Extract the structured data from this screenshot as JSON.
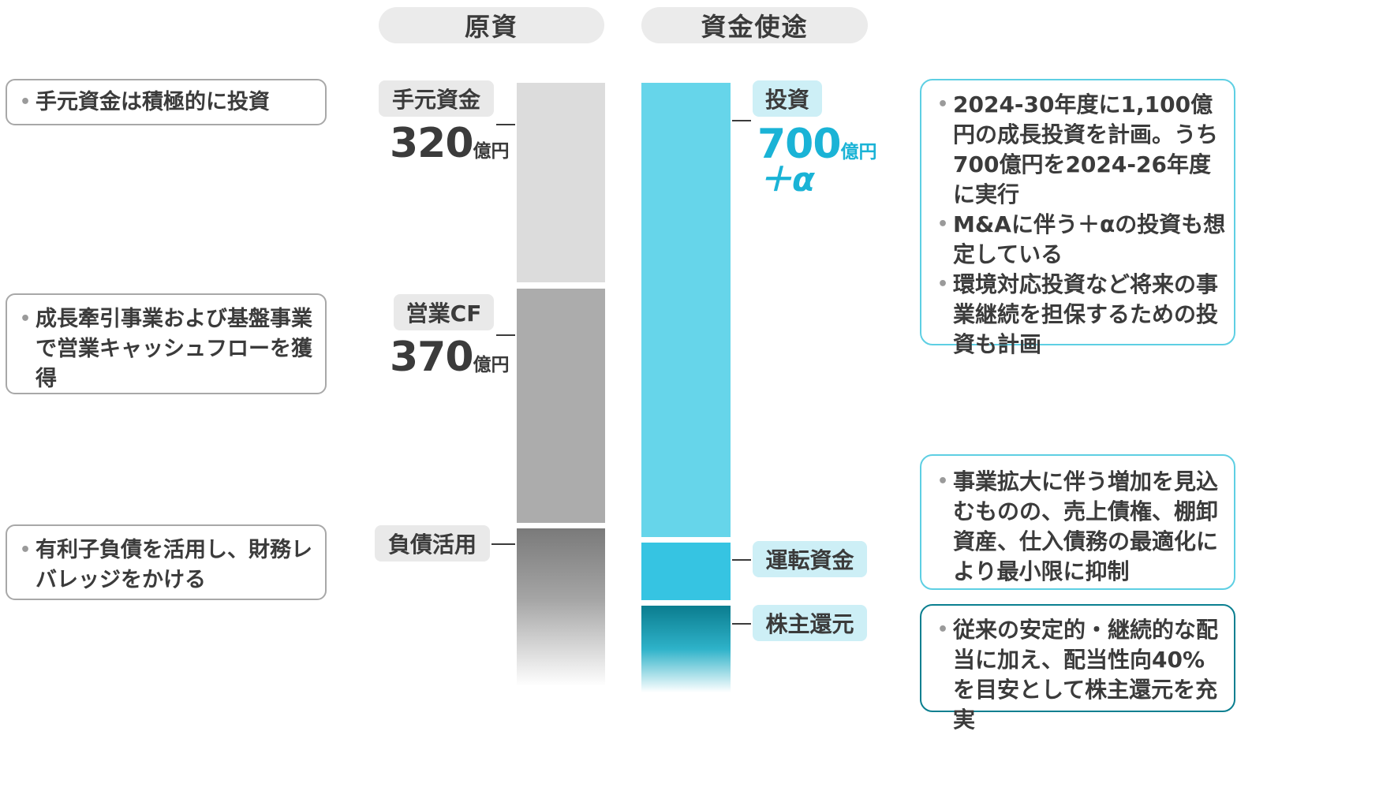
{
  "headers": {
    "sources": "原資",
    "uses": "資金使途"
  },
  "left_notes": [
    {
      "lines": [
        "手元資金は積極的に投資"
      ]
    },
    {
      "lines": [
        "成長牽引事業および基盤事業で営業キャッシュフローを獲得"
      ]
    },
    {
      "lines": [
        "有利子負債を活用し、財務レバレッジをかける"
      ]
    }
  ],
  "sources": {
    "cash": {
      "label": "手元資金",
      "value": "320",
      "unit": "億円"
    },
    "operating_cf": {
      "label": "営業CF",
      "value": "370",
      "unit": "億円"
    },
    "debt": {
      "label": "負債活用"
    }
  },
  "uses": {
    "investment": {
      "label": "投資",
      "value": "700",
      "unit": "億円",
      "plus": "＋α"
    },
    "working_capital": {
      "label": "運転資金"
    },
    "shareholder_return": {
      "label": "株主還元"
    }
  },
  "right_notes": {
    "investment": [
      "2024-30年度に1,100億円の成長投資を計画。うち700億円を2024-26年度に実行",
      "M&Aに伴う＋αの投資も想定している",
      "環境対応投資など将来の事業継続を担保するための投資も計画"
    ],
    "working_capital": [
      "事業拡大に伴う増加を見込むものの、売上債権、棚卸資産、仕入債務の最適化により最小限に抑制"
    ],
    "shareholder_return": [
      "従来の安定的・継続的な配当に加え、配当性向40%を目安として株主還元を充実"
    ]
  },
  "colors": {
    "cash_bar": "#dcdcdc",
    "cf_bar": "#acacac",
    "debt_bar": "#7a7a7a",
    "investment_bar": "#66d5ea",
    "working_bar": "#36c4e2",
    "return_bar": "#0b7d8f",
    "accent_text": "#1ab3d6"
  }
}
